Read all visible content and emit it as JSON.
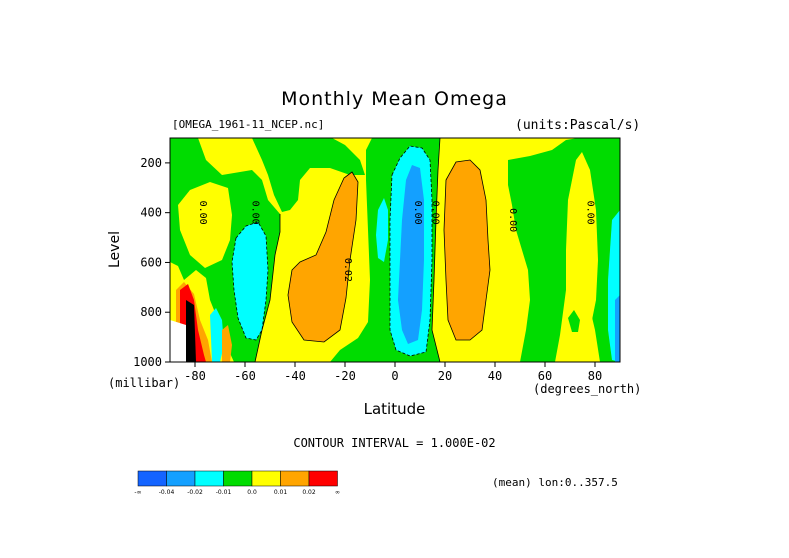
{
  "chart_data": {
    "type": "heatmap",
    "title": "Monthly Mean Omega",
    "source_label": "[OMEGA_1961-11_NCEP.nc]",
    "units_label": "(units:Pascal/s)",
    "xlabel": "Latitude",
    "xunits": "(degrees_north)",
    "ylabel": "Level",
    "yunits": "(millibar)",
    "xlim": [
      -90,
      90
    ],
    "ylim": [
      1000,
      100
    ],
    "x_ticks": [
      "-80",
      "-60",
      "-40",
      "-20",
      "0",
      "20",
      "40",
      "60",
      "80"
    ],
    "x_tick_values": [
      -80,
      -60,
      -40,
      -20,
      0,
      20,
      40,
      60,
      80
    ],
    "y_ticks": [
      "200",
      "400",
      "600",
      "800",
      "1000"
    ],
    "y_tick_values": [
      200,
      400,
      600,
      800,
      1000
    ],
    "contour_labels": [
      "0.00",
      "0.00",
      "0.02",
      "0.00",
      "0.00",
      "0.00",
      "0.00"
    ],
    "contour_interval": "CONTOUR INTERVAL = 1.000E-02",
    "mean_label": "(mean) lon:0..357.5",
    "colorbar": {
      "colors": [
        "#1464ff",
        "#14a0ff",
        "#00ffff",
        "#00dc00",
        "#ffff00",
        "#ffa500",
        "#ff0000"
      ],
      "labels": [
        "-∞",
        "-0.04",
        "-0.02",
        "-0.01",
        "0.0",
        "0.01",
        "0.02",
        "∞"
      ]
    },
    "colors": {
      "strong_ascent": "#1464ff",
      "ascent": "#14a0ff",
      "weak_ascent": "#00ffff",
      "near_zero_negative": "#00dc00",
      "near_zero_positive": "#ffff00",
      "descent": "#ffa500",
      "strong_descent": "#ff0000"
    }
  }
}
